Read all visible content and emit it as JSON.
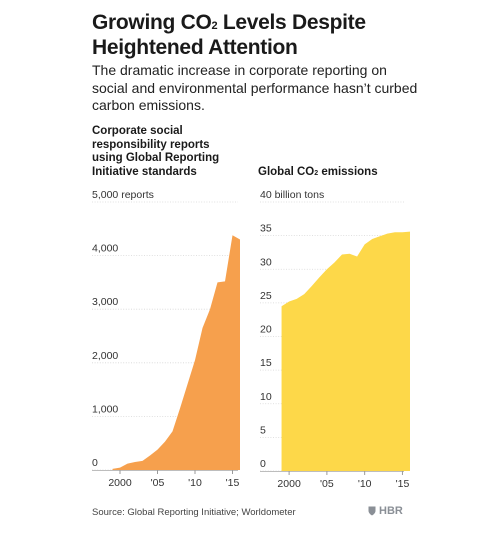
{
  "header": {
    "title_part1": "Growing CO",
    "title_sub": "2",
    "title_part2": " Levels Despite Heightened Attention",
    "subtitle": "The dramatic increase in corporate reporting on social and environmental performance hasn’t curbed carbon emissions."
  },
  "chart_data": [
    {
      "type": "area",
      "title": "Corporate social responsibility reports using Global Reporting Initiative standards",
      "ylabel": "5,000 reports",
      "ylim": [
        0,
        5000
      ],
      "yticks": [
        0,
        1000,
        2000,
        3000,
        4000
      ],
      "ytick_labels": [
        "0",
        "1,000",
        "2,000",
        "3,000",
        "4,000"
      ],
      "xlim": [
        1998,
        2016
      ],
      "xticks": [
        2000,
        2005,
        2010,
        2015
      ],
      "xtick_labels": [
        "2000",
        "'05",
        "'10",
        "'15"
      ],
      "grid": true,
      "color": "#f6a04d",
      "x": [
        1999,
        2000,
        2001,
        2002,
        2003,
        2004,
        2005,
        2006,
        2007,
        2008,
        2009,
        2010,
        2011,
        2012,
        2013,
        2014,
        2015,
        2016
      ],
      "values": [
        20,
        45,
        120,
        150,
        170,
        270,
        380,
        530,
        720,
        1150,
        1600,
        2050,
        2650,
        3000,
        3500,
        3520,
        4380,
        4300
      ]
    },
    {
      "type": "area",
      "title_part1": "Global CO",
      "title_sub": "2",
      "title_part2": " emissions",
      "ylabel": "40 billion tons",
      "ylim": [
        0,
        40
      ],
      "yticks": [
        0,
        5,
        10,
        15,
        20,
        25,
        30,
        35
      ],
      "ytick_labels": [
        "0",
        "5",
        "10",
        "15",
        "20",
        "25",
        "30",
        "35"
      ],
      "xlim": [
        1998,
        2016
      ],
      "xticks": [
        2000,
        2005,
        2010,
        2015
      ],
      "xtick_labels": [
        "2000",
        "'05",
        "'10",
        "'15"
      ],
      "grid": true,
      "color": "#fdd849",
      "x": [
        1999,
        2000,
        2001,
        2002,
        2003,
        2004,
        2005,
        2006,
        2007,
        2008,
        2009,
        2010,
        2011,
        2012,
        2013,
        2014,
        2015,
        2016
      ],
      "values": [
        24.5,
        25.2,
        25.6,
        26.3,
        27.5,
        28.8,
        30.0,
        31.0,
        32.2,
        32.3,
        31.9,
        33.7,
        34.5,
        34.9,
        35.3,
        35.5,
        35.5,
        35.6
      ]
    }
  ],
  "footer": {
    "source": "Source: Global Reporting Initiative; Worldometer",
    "brand": "HBR"
  }
}
